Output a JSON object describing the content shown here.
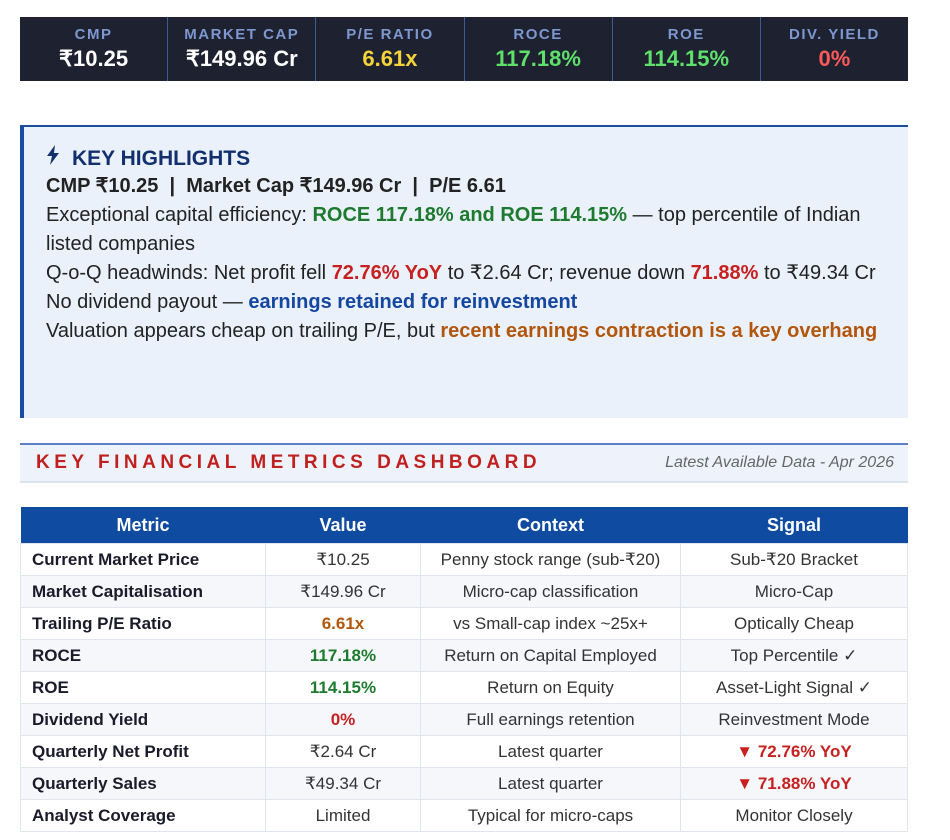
{
  "metrics_bar": [
    {
      "label": "CMP",
      "value": "₹10.25",
      "color": "#ffffff"
    },
    {
      "label": "MARKET CAP",
      "value": "₹149.96 Cr",
      "color": "#ffffff"
    },
    {
      "label": "P/E RATIO",
      "value": "6.61x",
      "color": "#f5d33a"
    },
    {
      "label": "ROCE",
      "value": "117.18%",
      "color": "#5ee06a"
    },
    {
      "label": "ROE",
      "value": "114.15%",
      "color": "#5ee06a"
    },
    {
      "label": "DIV. YIELD",
      "value": "0%",
      "color": "#ff5a5a"
    }
  ],
  "highlights": {
    "title": "KEY HIGHLIGHTS",
    "summary": "CMP ₹10.25  |  Market Cap ₹149.96 Cr  |  P/E 6.61",
    "l1a": "Exceptional capital efficiency: ",
    "l1b": "ROCE 117.18% and ROE 114.15%",
    "l1c": " — top percentile of Indian listed companies",
    "l2a": "Q-o-Q headwinds: Net profit fell ",
    "l2b": "72.76% YoY",
    "l2c": " to ₹2.64 Cr; revenue down ",
    "l2d": "71.88%",
    "l2e": " to ₹49.34 Cr",
    "l3a": "No dividend payout — ",
    "l3b": "earnings retained for reinvestment",
    "l4a": "Valuation appears cheap on trailing P/E, but ",
    "l4b": "recent earnings contraction is a key overhang"
  },
  "dashboard": {
    "title": "KEY FINANCIAL METRICS DASHBOARD",
    "subtitle": "Latest Available Data - Apr 2026"
  },
  "table": {
    "headers": [
      "Metric",
      "Value",
      "Context",
      "Signal"
    ],
    "rows": [
      {
        "metric": "Current Market Price",
        "value": "₹10.25",
        "context": "Penny stock range (sub-₹20)",
        "signal": "Sub-₹20 Bracket",
        "vc": "",
        "sc": ""
      },
      {
        "metric": "Market Capitalisation",
        "value": "₹149.96 Cr",
        "context": "Micro-cap classification",
        "signal": "Micro-Cap",
        "vc": "",
        "sc": ""
      },
      {
        "metric": "Trailing P/E Ratio",
        "value": "6.61x",
        "context": "vs Small-cap index ~25x+",
        "signal": "Optically Cheap",
        "vc": "o",
        "sc": ""
      },
      {
        "metric": "ROCE",
        "value": "117.18%",
        "context": "Return on Capital Employed",
        "signal": "Top Percentile ✓",
        "vc": "g",
        "sc": ""
      },
      {
        "metric": "ROE",
        "value": "114.15%",
        "context": "Return on Equity",
        "signal": "Asset-Light Signal ✓",
        "vc": "g",
        "sc": ""
      },
      {
        "metric": "Dividend Yield",
        "value": "0%",
        "context": "Full earnings retention",
        "signal": "Reinvestment Mode",
        "vc": "r",
        "sc": ""
      },
      {
        "metric": "Quarterly Net Profit",
        "value": "₹2.64 Cr",
        "context": "Latest quarter",
        "signal": "▼ 72.76% YoY",
        "vc": "",
        "sc": "r"
      },
      {
        "metric": "Quarterly Sales",
        "value": "₹49.34 Cr",
        "context": "Latest quarter",
        "signal": "▼ 71.88% YoY",
        "vc": "",
        "sc": "r"
      },
      {
        "metric": "Analyst Coverage",
        "value": "Limited",
        "context": "Typical for micro-caps",
        "signal": "Monitor Closely",
        "vc": "",
        "sc": ""
      }
    ]
  }
}
